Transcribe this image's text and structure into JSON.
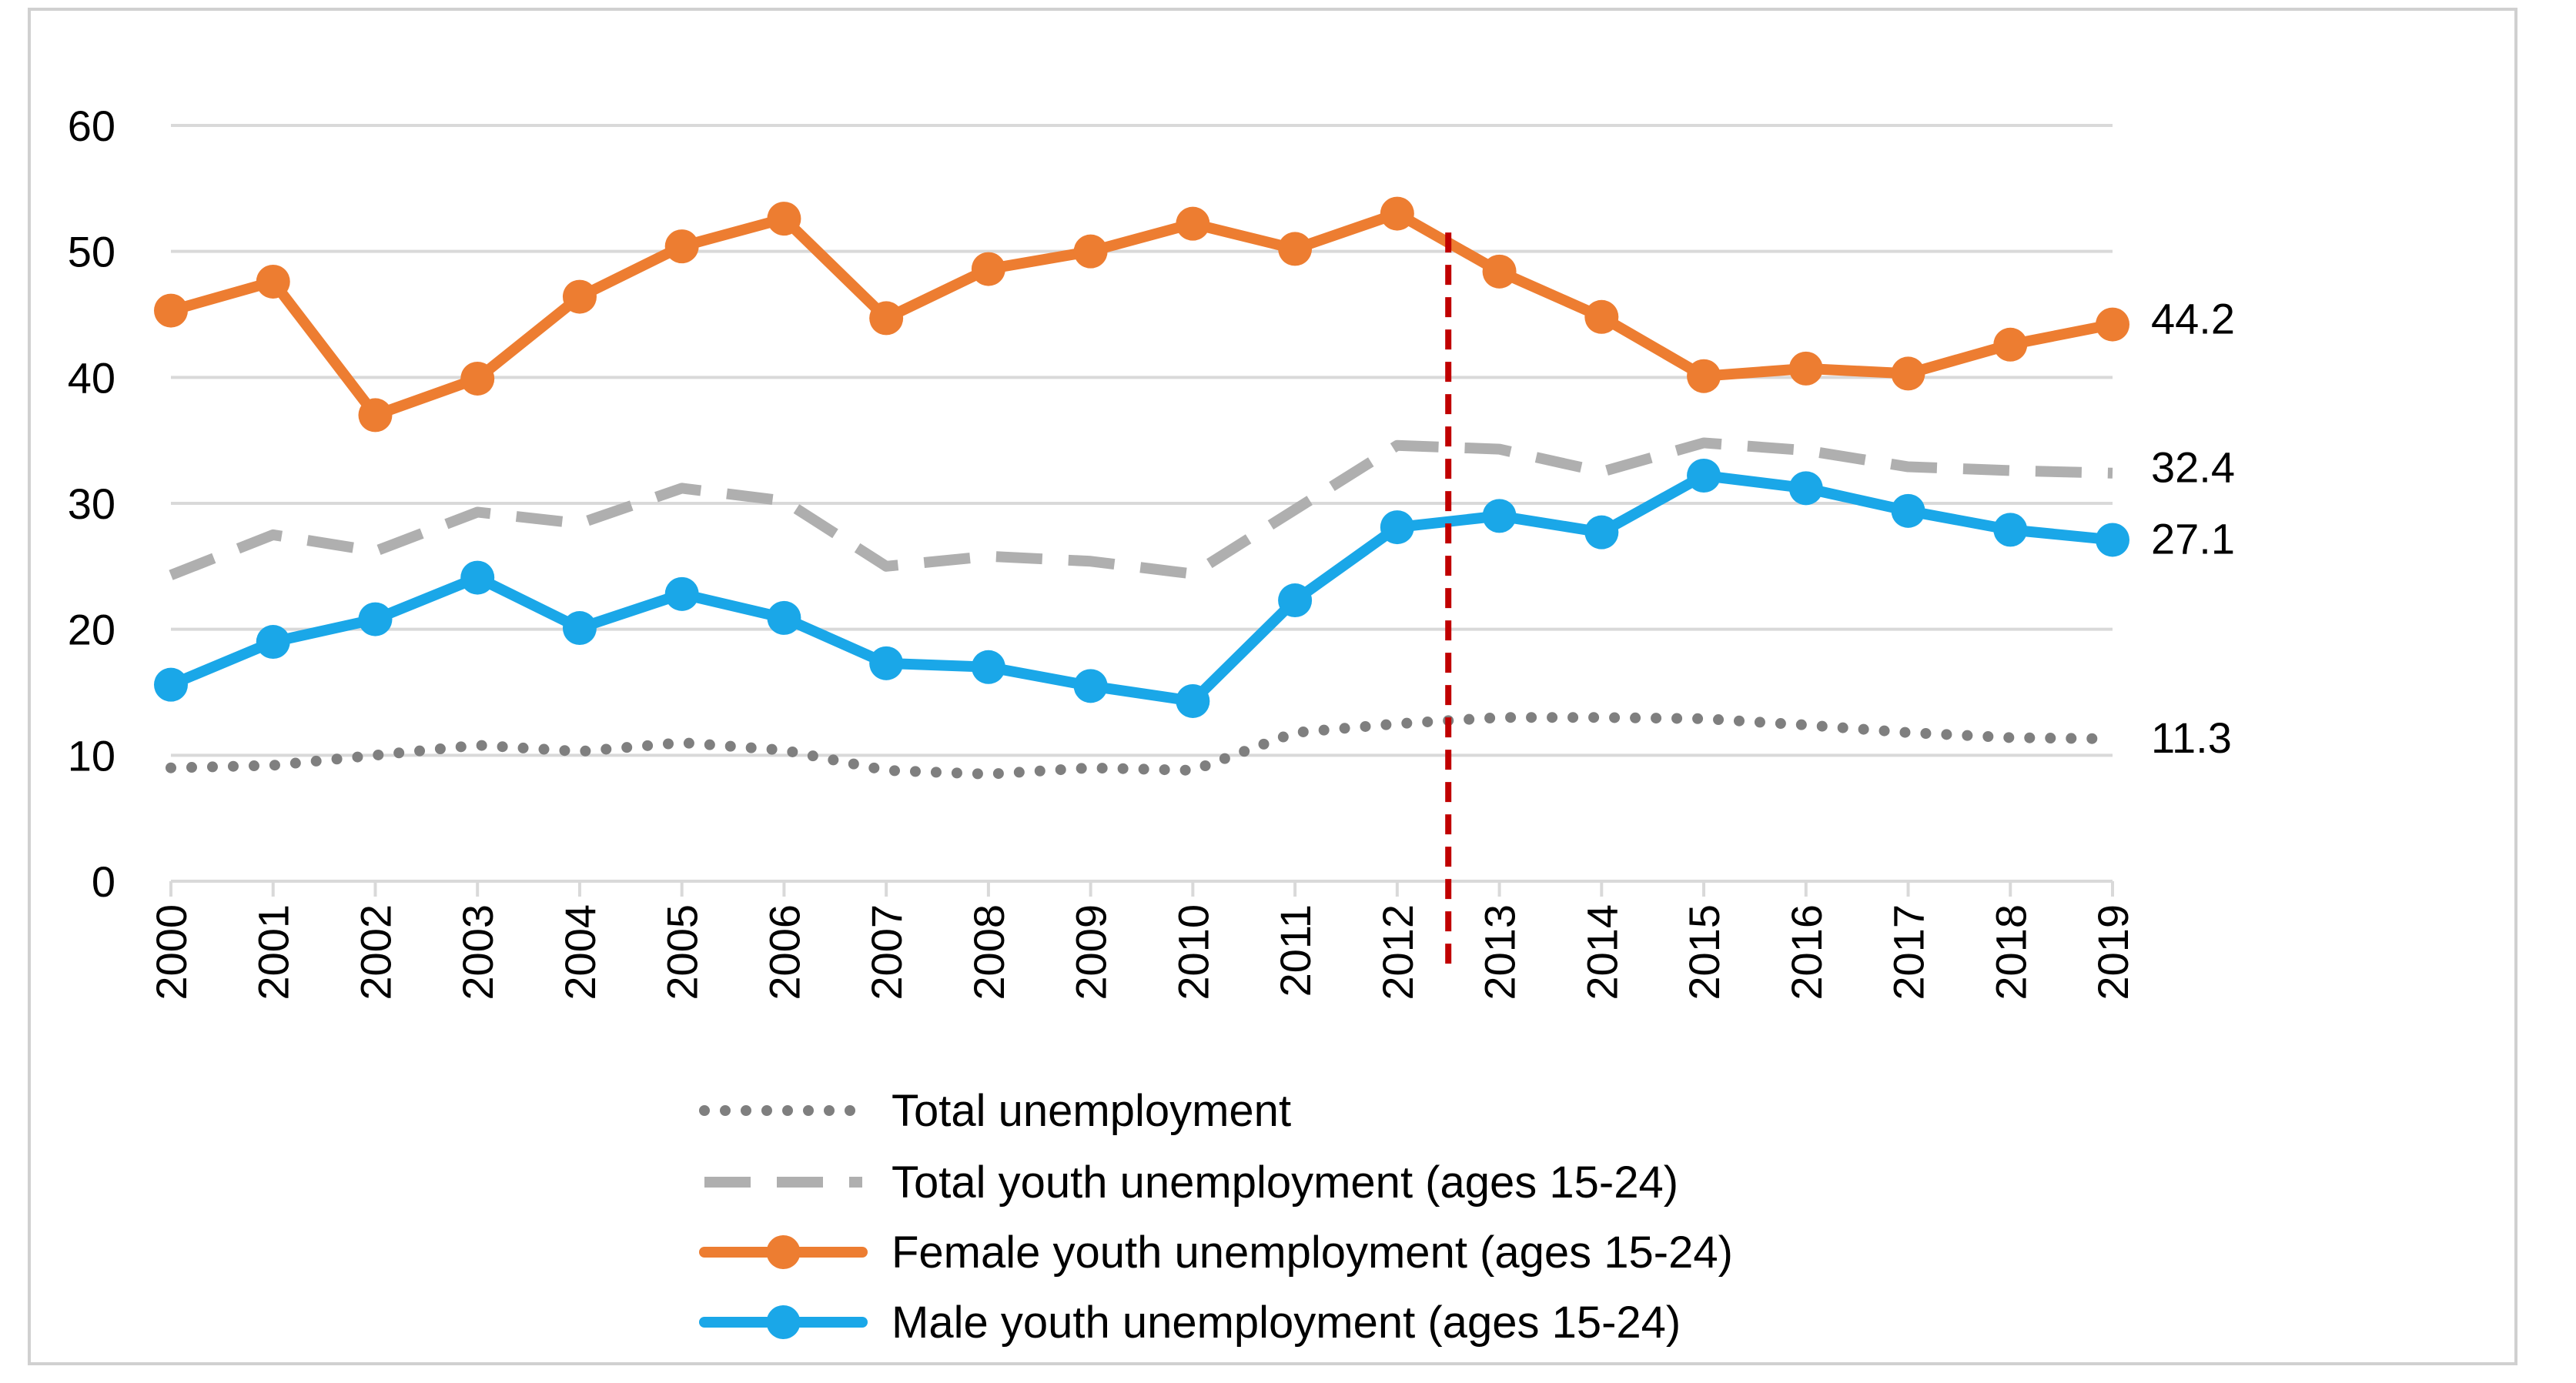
{
  "chart_data": {
    "type": "line",
    "title": "",
    "xlabel": "",
    "ylabel": "",
    "ylim": [
      0,
      60
    ],
    "yticks": [
      0,
      10,
      20,
      30,
      40,
      50,
      60
    ],
    "grid": true,
    "legend_position": "bottom",
    "categories": [
      "2000",
      "2001",
      "2002",
      "2003",
      "2004",
      "2005",
      "2006",
      "2007",
      "2008",
      "2009",
      "2010",
      "2011",
      "2012",
      "2013",
      "2014",
      "2015",
      "2016",
      "2017",
      "2018",
      "2019"
    ],
    "series": [
      {
        "name": "Total unemployment",
        "style": "dotted",
        "color": "#7f7f7f",
        "values": [
          9.0,
          9.2,
          10.0,
          10.8,
          10.3,
          11.0,
          10.4,
          8.8,
          8.5,
          9.0,
          8.8,
          11.8,
          12.5,
          13.0,
          13.0,
          12.9,
          12.4,
          11.8,
          11.4,
          11.3
        ],
        "end_label": "11.3"
      },
      {
        "name": "Total youth unemployment (ages 15-24)",
        "style": "dashed",
        "color": "#afafaf",
        "values": [
          24.3,
          27.5,
          26.2,
          29.3,
          28.4,
          31.2,
          30.2,
          25.0,
          25.8,
          25.4,
          24.4,
          29.5,
          34.6,
          34.3,
          32.5,
          34.8,
          34.2,
          32.9,
          32.6,
          32.4
        ],
        "end_label": "32.4"
      },
      {
        "name": "Female youth unemployment (ages 15-24)",
        "style": "solid-markers",
        "color": "#ed7d31",
        "values": [
          45.3,
          47.6,
          37.0,
          39.9,
          46.4,
          50.4,
          52.6,
          44.7,
          48.6,
          50.0,
          52.2,
          50.2,
          53.0,
          48.4,
          44.8,
          40.1,
          40.7,
          40.3,
          42.6,
          44.2
        ],
        "end_label": "44.2"
      },
      {
        "name": "Male youth unemployment (ages 15-24)",
        "style": "solid-markers",
        "color": "#1aa7e8",
        "values": [
          15.6,
          19.0,
          20.8,
          24.1,
          20.1,
          22.8,
          20.9,
          17.3,
          17.0,
          15.5,
          14.3,
          22.3,
          28.1,
          29.0,
          27.7,
          32.2,
          31.2,
          29.4,
          27.9,
          27.1
        ],
        "end_label": "27.1"
      }
    ],
    "vertical_marker": {
      "between": [
        "2012",
        "2013"
      ],
      "color": "#c00000",
      "style": "dashed"
    }
  }
}
